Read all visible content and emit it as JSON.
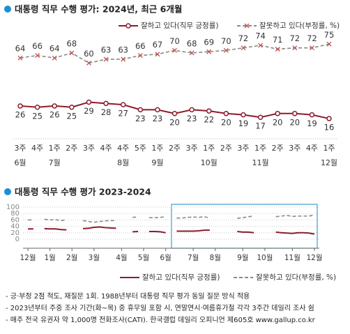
{
  "chart_data": [
    {
      "type": "line",
      "title": "대통령 직무 수행 평가: 2024년, 최근 6개월",
      "categories": [
        "3주",
        "4주",
        "1주",
        "2주",
        "3주",
        "4주",
        "4주",
        "5주",
        "1주",
        "2주",
        "3주",
        "1주",
        "2주",
        "3주",
        "1주",
        "2주",
        "3주",
        "4주",
        "1주"
      ],
      "month_labels": [
        "6월",
        null,
        "7월",
        null,
        null,
        null,
        "8월",
        null,
        "9월",
        null,
        null,
        "10월",
        null,
        null,
        "11월",
        null,
        null,
        null,
        "12월"
      ],
      "ylim": [
        0,
        100
      ],
      "series": [
        {
          "name": "잘하고 있다(직무 긍정률)",
          "color": "#8b1c2b",
          "values": [
            26,
            25,
            26,
            25,
            29,
            28,
            27,
            23,
            23,
            20,
            23,
            22,
            20,
            19,
            17,
            20,
            20,
            19,
            16
          ]
        },
        {
          "name": "잘못하고 있다(부정률, %)",
          "color": "#8a8a8a",
          "values": [
            64,
            66,
            64,
            68,
            60,
            63,
            63,
            66,
            67,
            70,
            68,
            69,
            70,
            72,
            74,
            71,
            72,
            72,
            75
          ]
        }
      ]
    },
    {
      "type": "line",
      "title": "대통령 직무 수행 평가 2023-2024",
      "categories": [
        "12월",
        null,
        null,
        null,
        "1월",
        null,
        null,
        null,
        "2월",
        null,
        null,
        null,
        "3월",
        null,
        null,
        null,
        null,
        "4월",
        null,
        null,
        null,
        "5월",
        null,
        null,
        null,
        "6월",
        null,
        null,
        null,
        null,
        "7월",
        null,
        null,
        null,
        "8월",
        null,
        null,
        null,
        null,
        "9월",
        null,
        null,
        null,
        "10월",
        null,
        null,
        null,
        null,
        "11월",
        null,
        null,
        null,
        "12월"
      ],
      "ylim": [
        0,
        100
      ],
      "yticks": [
        0,
        20,
        40,
        60,
        80,
        100
      ],
      "grid": true,
      "series": [
        {
          "name": "잘하고 있다(직무 긍정률)",
          "color": "#8b1c2b",
          "values": [
            32,
            32,
            null,
            33,
            32,
            32,
            30,
            29,
            null,
            null,
            33,
            34,
            37,
            38,
            36,
            35,
            34,
            null,
            null,
            23,
            24,
            null,
            24,
            24,
            23,
            20,
            null,
            25,
            25,
            25,
            25,
            26,
            28,
            28,
            null,
            null,
            null,
            null,
            24,
            22,
            22,
            20,
            null,
            null,
            null,
            22,
            20,
            19,
            18,
            20,
            20,
            19,
            16
          ]
        },
        {
          "name": "잘못하고 있다(부정률, %)",
          "color": "#8a8a8a",
          "values": [
            60,
            60,
            null,
            62,
            60,
            61,
            58,
            60,
            null,
            null,
            58,
            55,
            53,
            55,
            57,
            58,
            58,
            null,
            null,
            68,
            69,
            null,
            67,
            67,
            68,
            70,
            null,
            66,
            66,
            68,
            69,
            68,
            70,
            66,
            null,
            null,
            null,
            null,
            65,
            67,
            70,
            72,
            null,
            null,
            null,
            70,
            72,
            74,
            71,
            72,
            72,
            72,
            75
          ]
        }
      ]
    }
  ],
  "notes": [
    "- 긍·부정 2점 척도, 재질문 1회. 1988년부터 대통령 직무 평가 동일 질문 방식 적용",
    "- 2023년부터 주중 조사 기간(화~목) 중 휴무일 포함 시, 연말연시·여름휴가철 각각 3주간 데일리 조사 쉼",
    "- 매주 전국 유권자 약 1,000명 전화조사(CATI). 한국갤럽 데일리 오피니언 제605호 www.gallup.co.kr"
  ]
}
